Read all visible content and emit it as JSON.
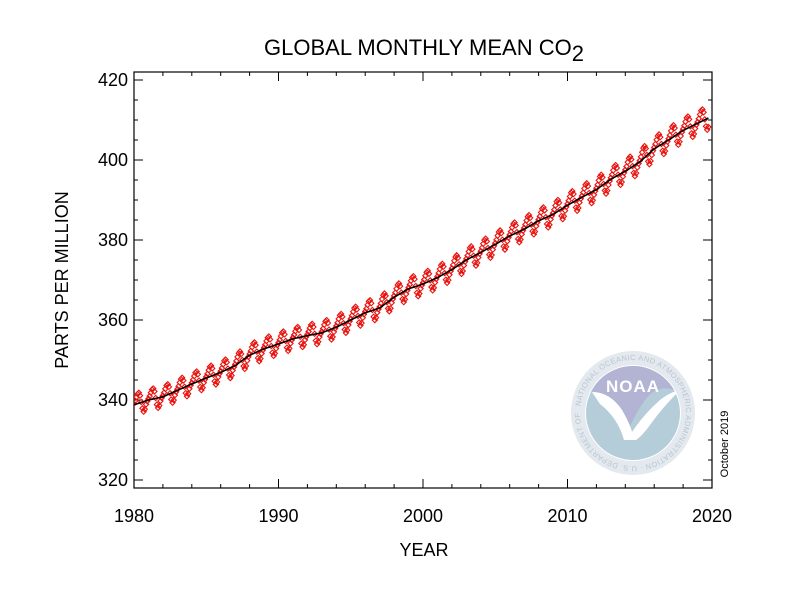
{
  "chart_data": {
    "type": "line",
    "title": "GLOBAL MONTHLY MEAN CO",
    "title_subscript": "2",
    "xlabel": "YEAR",
    "ylabel": "PARTS PER MILLION",
    "xlim": [
      1980,
      2020
    ],
    "ylim": [
      318,
      422
    ],
    "x_ticks": [
      1980,
      1990,
      2000,
      2010,
      2020
    ],
    "y_ticks": [
      320,
      340,
      360,
      380,
      400,
      420
    ],
    "grid": false,
    "legend": "none",
    "series": [
      {
        "style": "red diamond markers with seasonal cycle",
        "color": "#e8130e",
        "x": [
          1980,
          1981,
          1982,
          1983,
          1984,
          1985,
          1986,
          1987,
          1988,
          1989,
          1990,
          1991,
          1992,
          1993,
          1994,
          1995,
          1996,
          1997,
          1998,
          1999,
          2000,
          2001,
          2002,
          2003,
          2004,
          2005,
          2006,
          2007,
          2008,
          2009,
          2010,
          2011,
          2012,
          2013,
          2014,
          2015,
          2016,
          2017,
          2018,
          2019.75
        ],
        "values": [
          338.8,
          340.0,
          340.8,
          342.4,
          344.0,
          345.5,
          346.9,
          348.6,
          351.2,
          352.8,
          354.0,
          355.3,
          356.1,
          356.8,
          358.2,
          360.0,
          361.8,
          363.0,
          365.7,
          367.8,
          369.0,
          370.6,
          372.6,
          375.0,
          376.9,
          378.9,
          381.0,
          382.7,
          384.8,
          386.4,
          388.7,
          390.7,
          392.6,
          395.2,
          397.2,
          399.5,
          402.8,
          405.0,
          407.4,
          410.5
        ]
      },
      {
        "style": "black deseasonalized trend line",
        "color": "#000000",
        "x": [
          1980,
          1981,
          1982,
          1983,
          1984,
          1985,
          1986,
          1987,
          1988,
          1989,
          1990,
          1991,
          1992,
          1993,
          1994,
          1995,
          1996,
          1997,
          1998,
          1999,
          2000,
          2001,
          2002,
          2003,
          2004,
          2005,
          2006,
          2007,
          2008,
          2009,
          2010,
          2011,
          2012,
          2013,
          2014,
          2015,
          2016,
          2017,
          2018,
          2019.75
        ],
        "values": [
          338.8,
          340.0,
          340.8,
          342.4,
          344.0,
          345.5,
          346.9,
          348.6,
          351.2,
          352.8,
          354.0,
          355.3,
          356.1,
          356.8,
          358.2,
          360.0,
          361.8,
          363.0,
          365.7,
          367.8,
          369.0,
          370.6,
          372.6,
          375.0,
          376.9,
          378.9,
          381.0,
          382.7,
          384.8,
          386.4,
          388.7,
          390.7,
          392.6,
          395.2,
          397.2,
          399.5,
          402.8,
          405.0,
          407.4,
          410.5
        ]
      }
    ]
  },
  "annotations": {
    "date_stamp": "October 2019"
  },
  "logo": {
    "name": "noaa-logo",
    "text": "NOAA",
    "ring_text": "NATIONAL OCEANIC AND ATMOSPHERIC ADMINISTRATION · U.S. DEPARTMENT OF COMMERCE ·",
    "colors": {
      "sky": "#b3b3d4",
      "sea": "#b5cdd8",
      "ring": "#e3e9ee",
      "bird": "#ffffff"
    }
  }
}
